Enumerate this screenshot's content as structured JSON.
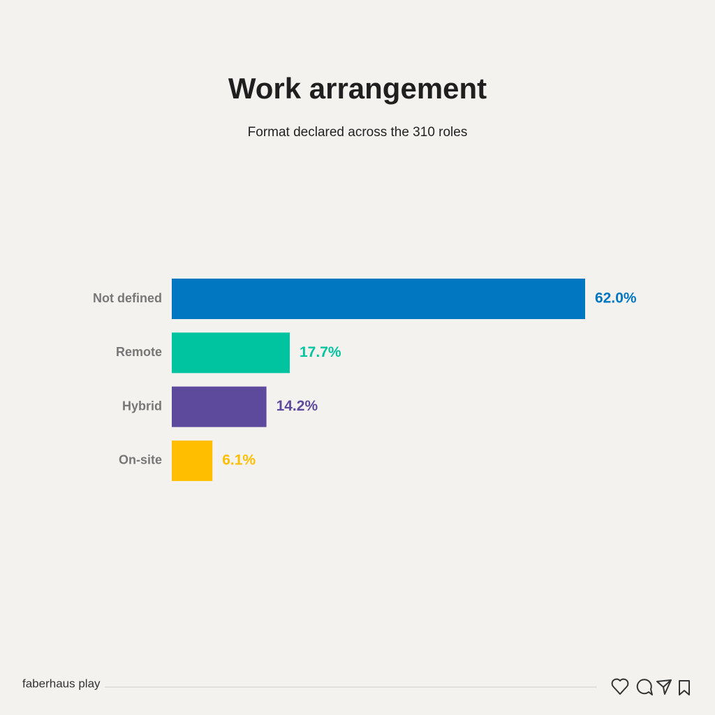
{
  "chart_data": {
    "type": "bar",
    "title": "Work arrangement",
    "subtitle": "Format declared across the 310 roles",
    "categories": [
      "Not defined",
      "Remote",
      "Hybrid",
      "On-site"
    ],
    "values": [
      62.0,
      17.7,
      14.2,
      6.1
    ],
    "value_labels": [
      "62.0%",
      "17.7%",
      "14.2%",
      "6.1%"
    ],
    "colors": [
      "#0077c0",
      "#00c4a0",
      "#5e4a9c",
      "#ffbf00"
    ]
  },
  "footer": {
    "brand": "faberhaus play"
  }
}
